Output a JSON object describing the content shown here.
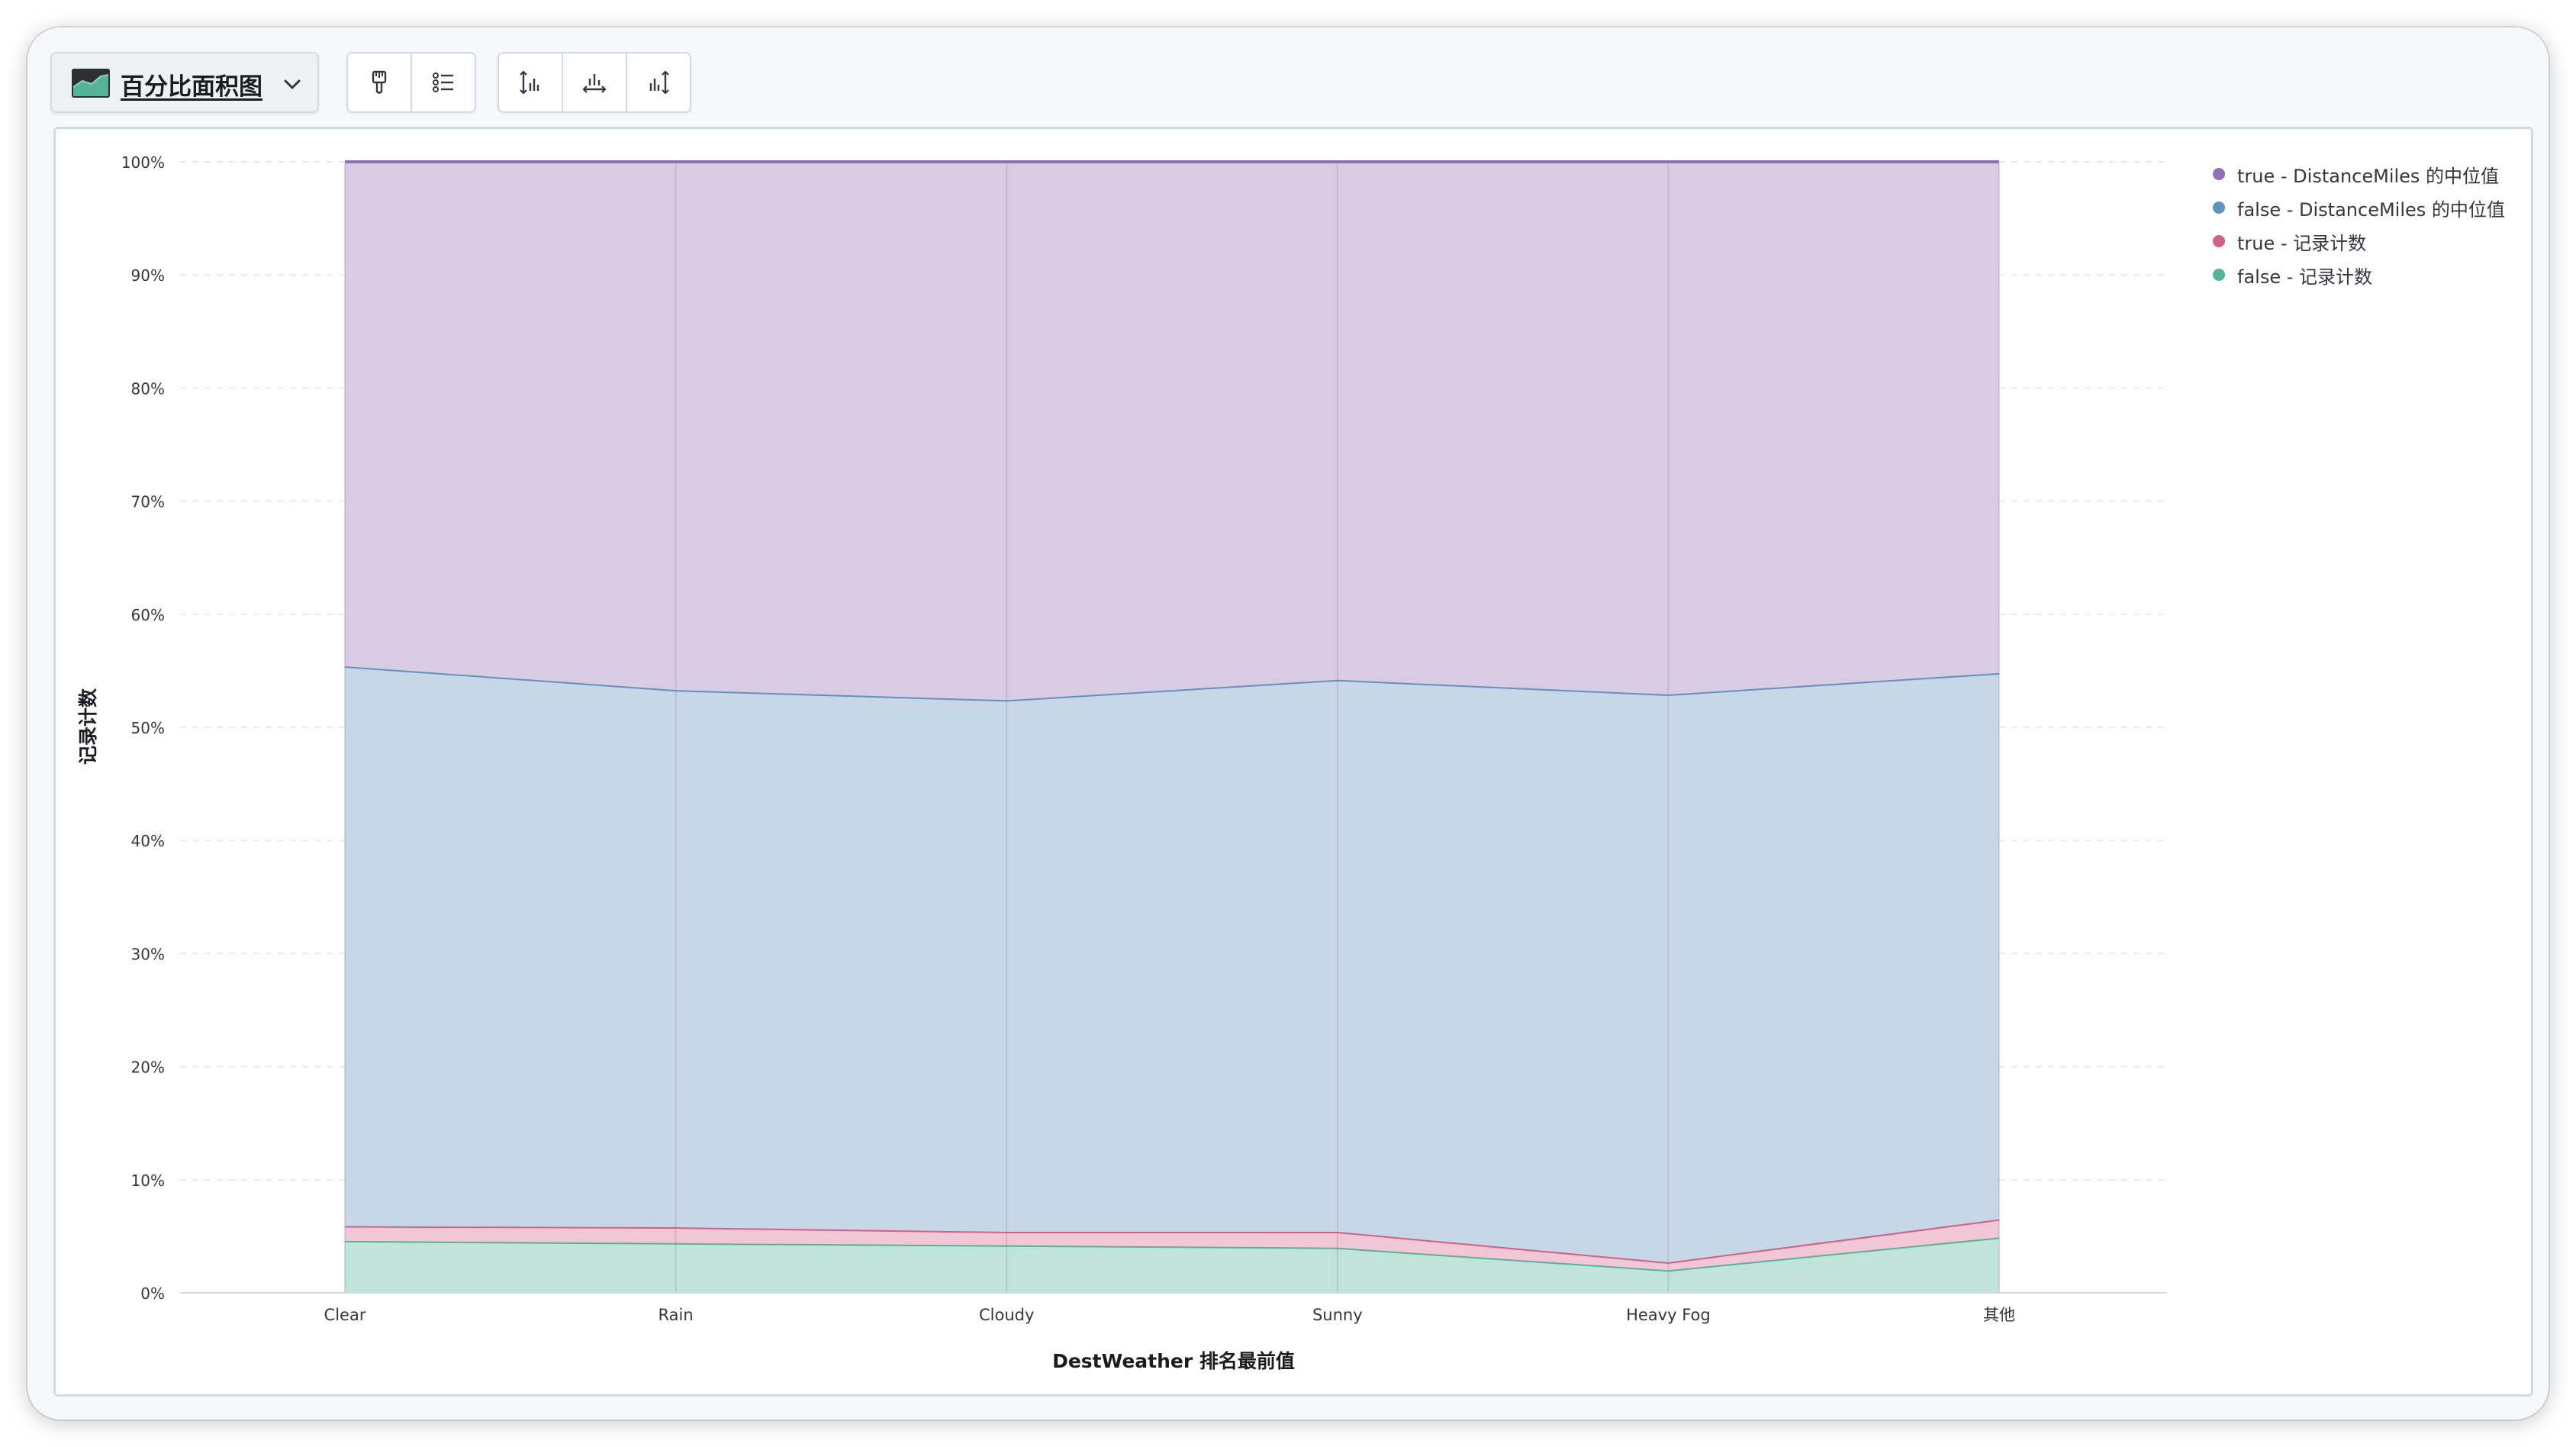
{
  "toolbar": {
    "chart_type_label": "百分比面积图",
    "icons": [
      "paint-brush-icon",
      "legend-list-icon",
      "left-axis-icon",
      "bottom-axis-icon",
      "right-axis-icon"
    ]
  },
  "chart_data": {
    "type": "area",
    "stacked": "percentage",
    "xlabel": "DestWeather 排名最前值",
    "ylabel": "记录计数",
    "categories": [
      "Clear",
      "Rain",
      "Cloudy",
      "Sunny",
      "Heavy Fog",
      "其他"
    ],
    "y_ticks": [
      "0%",
      "10%",
      "20%",
      "30%",
      "40%",
      "50%",
      "60%",
      "70%",
      "80%",
      "90%",
      "100%"
    ],
    "ylim": [
      0,
      100
    ],
    "grid": true,
    "legend_position": "top-right",
    "series": [
      {
        "name": "false - 记录计数",
        "color": "#54b399",
        "fill": "#c1e4da",
        "values": [
          4.6,
          4.4,
          4.2,
          4.0,
          2.0,
          4.9
        ]
      },
      {
        "name": "true - 记录计数",
        "color": "#d36086",
        "fill": "#f1c7d5",
        "values": [
          1.3,
          1.4,
          1.2,
          1.4,
          0.7,
          1.6
        ]
      },
      {
        "name": "false - DistanceMiles 的中位值",
        "color": "#6092c0",
        "fill": "#c8d7e7",
        "values": [
          49.5,
          47.5,
          47.0,
          48.8,
          50.2,
          48.3
        ]
      },
      {
        "name": "true - DistanceMiles 的中位值",
        "color": "#9170b8",
        "fill": "#d9cbe4",
        "values": [
          44.6,
          46.7,
          47.6,
          45.8,
          47.1,
          45.2
        ]
      }
    ]
  }
}
